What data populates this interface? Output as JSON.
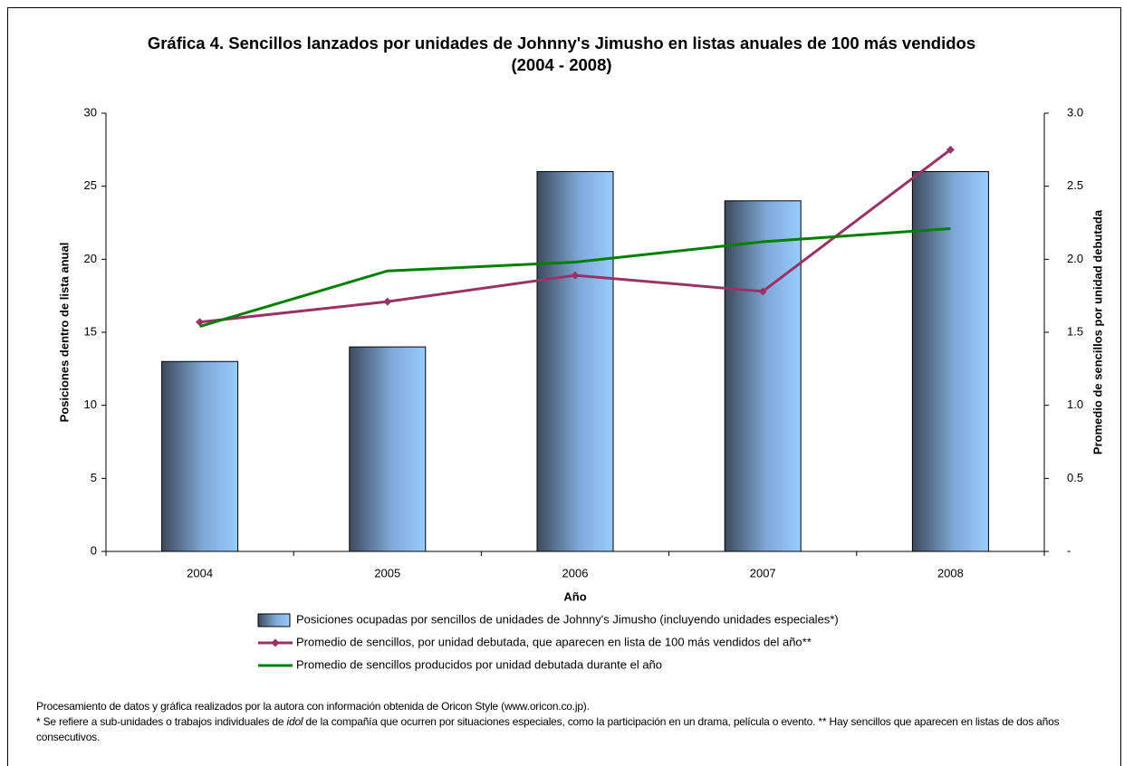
{
  "chart_data": {
    "type": "bar-line",
    "title": "Gráfica 4. Sencillos lanzados por unidades de Johnny's Jimusho en listas anuales de 100 más vendidos (2004 - 2008)",
    "x_label": "Año",
    "y_label": "Posiciones dentro de lista anual",
    "y2_label": "Promedio de sencillos por unidad debutada",
    "categories": [
      "2004",
      "2005",
      "2006",
      "2007",
      "2008"
    ],
    "ylim": [
      0,
      30
    ],
    "yticks": [
      0,
      5,
      10,
      15,
      20,
      25,
      30
    ],
    "y2lim": [
      0,
      3
    ],
    "y2ticks": [
      {
        "value": 0,
        "label": "-"
      },
      0.5,
      {
        "value": 1,
        "label": "1.0"
      },
      1.5,
      {
        "value": 2,
        "label": "2.0"
      },
      2.5,
      {
        "value": 3,
        "label": "3.0"
      }
    ],
    "series": [
      {
        "name": "Posiciones ocupadas por sencillos de unidades de Johnny's Jimusho (incluyendo unidades especiales*)",
        "type": "bar",
        "color": "#99ccff",
        "values": [
          13,
          14,
          26,
          24,
          26
        ]
      },
      {
        "name": "Promedio de sencillos, por unidad debutada, que aparecen en lista de 100 más vendidos del año**",
        "type": "line",
        "marker": "diamond",
        "axis": "y2",
        "color": "#993366",
        "values": [
          1.57,
          1.71,
          1.89,
          1.78,
          2.75
        ]
      },
      {
        "name": "Promedio de sencillos producidos por unidad debutada durante el año",
        "type": "line",
        "axis": "y2",
        "color": "#008000",
        "values": [
          1.54,
          1.92,
          1.98,
          2.12,
          2.21
        ]
      }
    ],
    "source": "Procesamiento de datos y gráfica realizados por la autora con información obtenida de Oricon Style (www.oricon.co.jp).",
    "note": [
      "* Se refiere a sub-unidades o trabajos individuales de ",
      "idol",
      "  de la compañía que ocurren por situaciones especiales, como la participación en un drama, película o evento. ** Hay sencillos que aparecen en listas de dos años consecutivos."
    ]
  }
}
